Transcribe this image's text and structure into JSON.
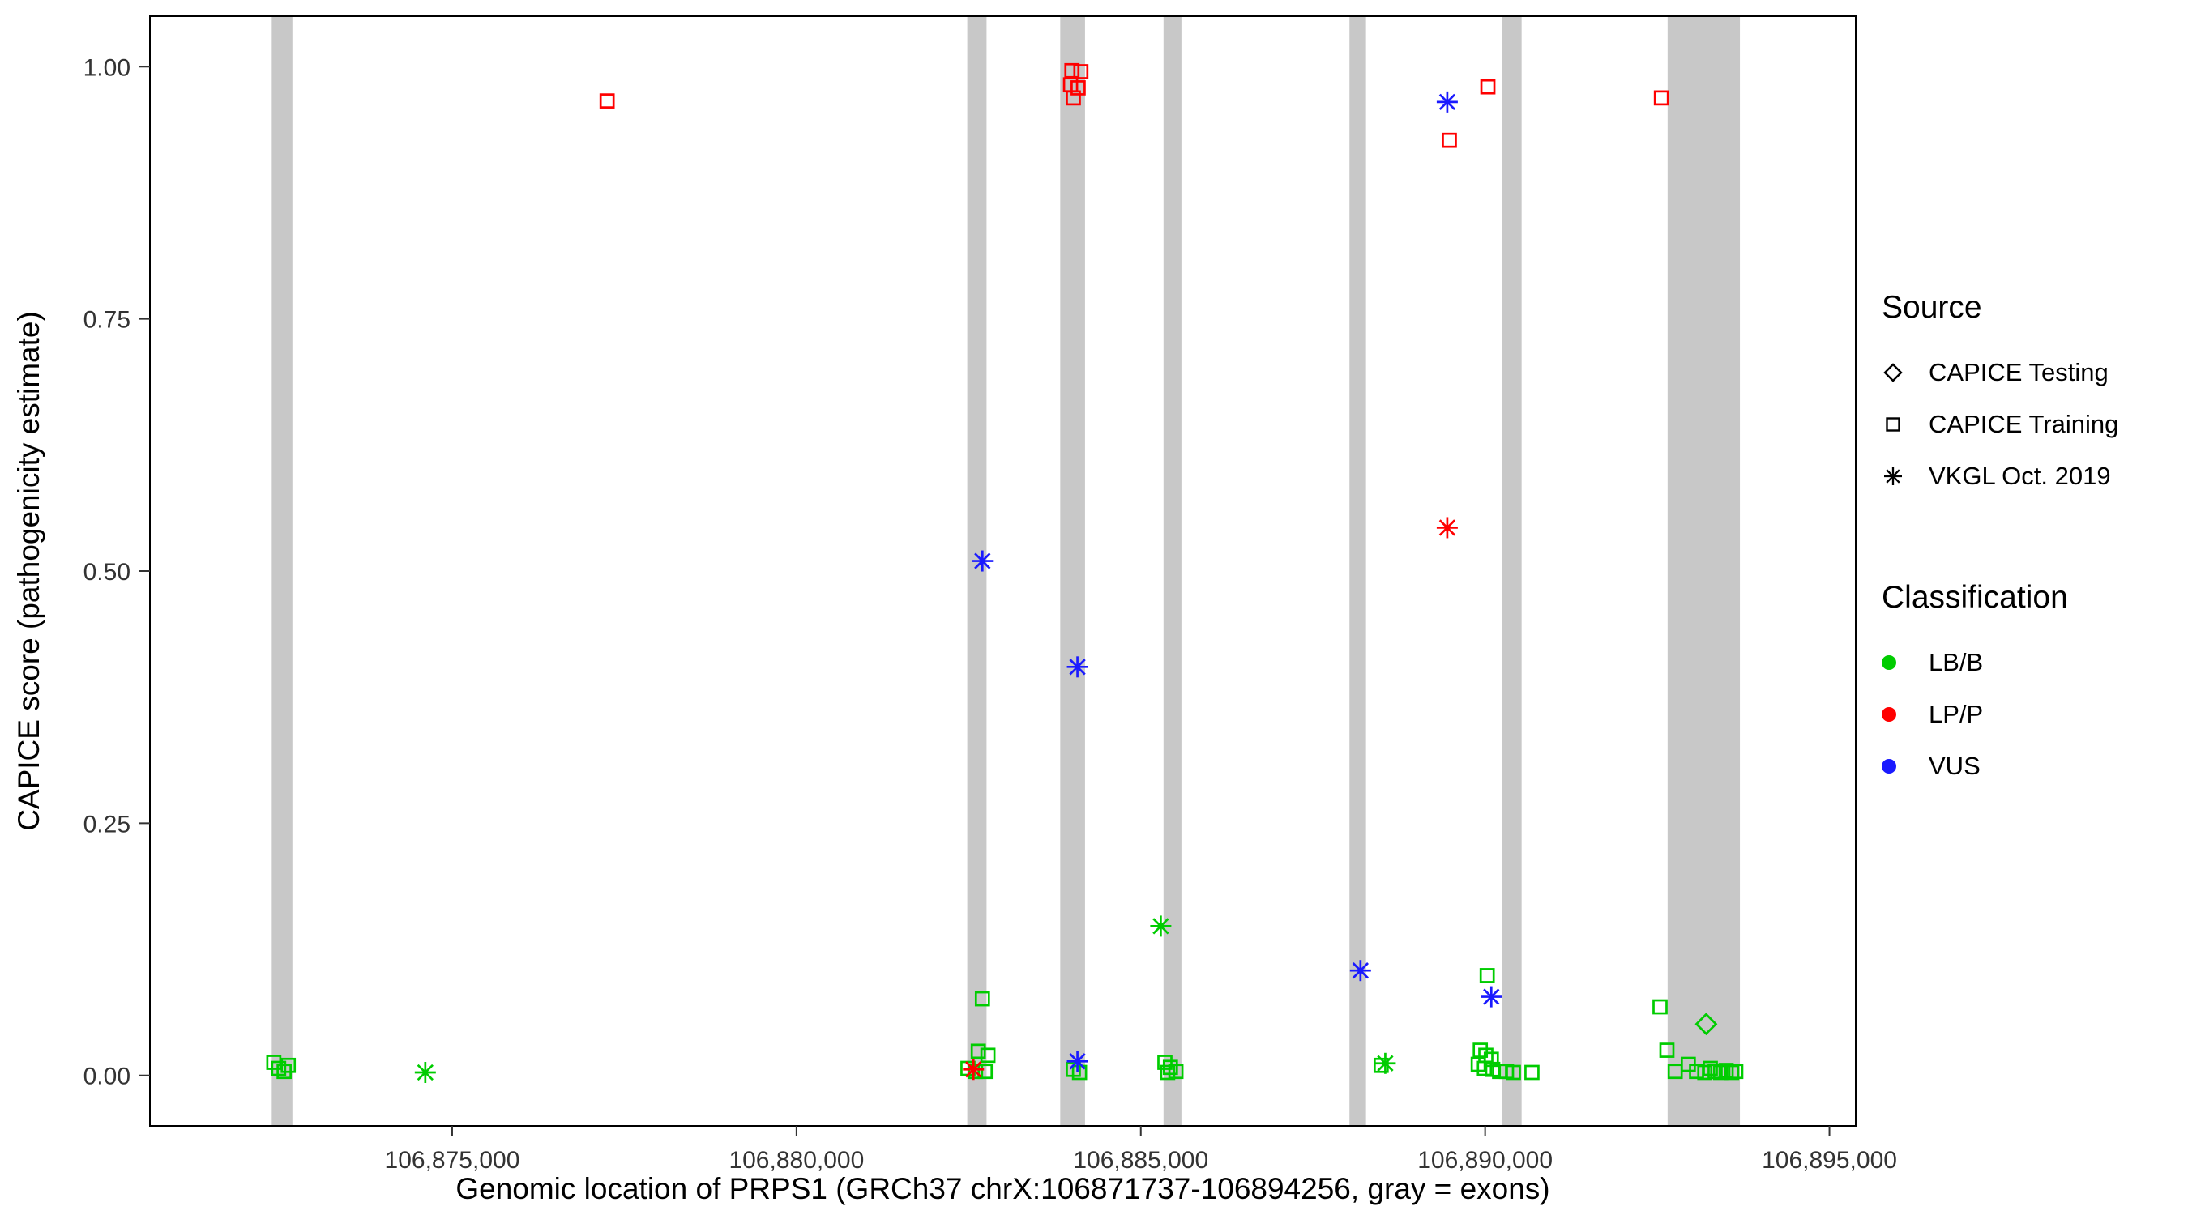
{
  "chart_data": {
    "type": "scatter",
    "title": "",
    "xlabel": "Genomic location of PRPS1 (GRCh37 chrX:106871737-106894256, gray = exons)",
    "ylabel": "CAPICE score (pathogenicity estimate)",
    "xlim": [
      106870611,
      106895382
    ],
    "ylim": [
      -0.05,
      1.05
    ],
    "x_ticks": [
      {
        "value": 106875000,
        "label": "106,875,000"
      },
      {
        "value": 106880000,
        "label": "106,880,000"
      },
      {
        "value": 106885000,
        "label": "106,885,000"
      },
      {
        "value": 106890000,
        "label": "106,890,000"
      },
      {
        "value": 106895000,
        "label": "106,895,000"
      }
    ],
    "y_ticks": [
      {
        "value": 0.0,
        "label": "0.00"
      },
      {
        "value": 0.25,
        "label": "0.25"
      },
      {
        "value": 0.5,
        "label": "0.50"
      },
      {
        "value": 0.75,
        "label": "0.75"
      },
      {
        "value": 1.0,
        "label": "1.00"
      }
    ],
    "grid": false,
    "legend_position": "right",
    "exon_color": "#c8c8c8",
    "panel_border_color": "#000000",
    "series_colors": {
      "LB/B": "#00cc00",
      "LP/P": "#ff0000",
      "VUS": "#1a1aff"
    },
    "shape_by_source": {
      "testing": "diamond",
      "training": "square",
      "vkgl": "asterisk"
    },
    "exons": [
      [
        106872380,
        106872680
      ],
      [
        106882480,
        106882760
      ],
      [
        106883830,
        106884190
      ],
      [
        106885330,
        106885590
      ],
      [
        106888030,
        106888270
      ],
      [
        106890250,
        106890530
      ],
      [
        106892650,
        106893700
      ]
    ],
    "points": [
      {
        "x": 106872410,
        "y": 0.013,
        "source": "training",
        "cls": "LB/B"
      },
      {
        "x": 106872480,
        "y": 0.007,
        "source": "training",
        "cls": "LB/B"
      },
      {
        "x": 106872560,
        "y": 0.004,
        "source": "training",
        "cls": "LB/B"
      },
      {
        "x": 106872620,
        "y": 0.01,
        "source": "training",
        "cls": "LB/B"
      },
      {
        "x": 106874610,
        "y": 0.003,
        "source": "vkgl",
        "cls": "LB/B"
      },
      {
        "x": 106877250,
        "y": 0.966,
        "source": "training",
        "cls": "LP/P"
      },
      {
        "x": 106882700,
        "y": 0.076,
        "source": "training",
        "cls": "LB/B"
      },
      {
        "x": 106882640,
        "y": 0.024,
        "source": "training",
        "cls": "LB/B"
      },
      {
        "x": 106882780,
        "y": 0.02,
        "source": "training",
        "cls": "LB/B"
      },
      {
        "x": 106882490,
        "y": 0.007,
        "source": "training",
        "cls": "LB/B"
      },
      {
        "x": 106882600,
        "y": 0.004,
        "source": "training",
        "cls": "LB/B"
      },
      {
        "x": 106882740,
        "y": 0.004,
        "source": "training",
        "cls": "LB/B"
      },
      {
        "x": 106882570,
        "y": 0.006,
        "source": "vkgl",
        "cls": "LP/P"
      },
      {
        "x": 106882700,
        "y": 0.51,
        "source": "vkgl",
        "cls": "VUS"
      },
      {
        "x": 106884000,
        "y": 0.996,
        "source": "training",
        "cls": "LP/P"
      },
      {
        "x": 106884130,
        "y": 0.995,
        "source": "training",
        "cls": "LP/P"
      },
      {
        "x": 106883980,
        "y": 0.982,
        "source": "training",
        "cls": "LP/P"
      },
      {
        "x": 106884090,
        "y": 0.979,
        "source": "training",
        "cls": "LP/P"
      },
      {
        "x": 106884020,
        "y": 0.969,
        "source": "training",
        "cls": "LP/P"
      },
      {
        "x": 106884080,
        "y": 0.405,
        "source": "vkgl",
        "cls": "VUS"
      },
      {
        "x": 106884020,
        "y": 0.006,
        "source": "training",
        "cls": "LB/B"
      },
      {
        "x": 106884110,
        "y": 0.003,
        "source": "training",
        "cls": "LB/B"
      },
      {
        "x": 106884080,
        "y": 0.014,
        "source": "vkgl",
        "cls": "VUS"
      },
      {
        "x": 106885290,
        "y": 0.148,
        "source": "vkgl",
        "cls": "LB/B"
      },
      {
        "x": 106885350,
        "y": 0.013,
        "source": "training",
        "cls": "LB/B"
      },
      {
        "x": 106885430,
        "y": 0.008,
        "source": "training",
        "cls": "LB/B"
      },
      {
        "x": 106885510,
        "y": 0.004,
        "source": "training",
        "cls": "LB/B"
      },
      {
        "x": 106885390,
        "y": 0.003,
        "source": "training",
        "cls": "LB/B"
      },
      {
        "x": 106888190,
        "y": 0.104,
        "source": "vkgl",
        "cls": "VUS"
      },
      {
        "x": 106888490,
        "y": 0.01,
        "source": "training",
        "cls": "LB/B"
      },
      {
        "x": 106888550,
        "y": 0.012,
        "source": "vkgl",
        "cls": "LB/B"
      },
      {
        "x": 106889450,
        "y": 0.965,
        "source": "vkgl",
        "cls": "VUS"
      },
      {
        "x": 106889480,
        "y": 0.927,
        "source": "training",
        "cls": "LP/P"
      },
      {
        "x": 106890040,
        "y": 0.98,
        "source": "training",
        "cls": "LP/P"
      },
      {
        "x": 106889450,
        "y": 0.543,
        "source": "vkgl",
        "cls": "LP/P"
      },
      {
        "x": 106890030,
        "y": 0.099,
        "source": "training",
        "cls": "LB/B"
      },
      {
        "x": 106890090,
        "y": 0.078,
        "source": "vkgl",
        "cls": "VUS"
      },
      {
        "x": 106889930,
        "y": 0.025,
        "source": "training",
        "cls": "LB/B"
      },
      {
        "x": 106890010,
        "y": 0.02,
        "source": "training",
        "cls": "LB/B"
      },
      {
        "x": 106890090,
        "y": 0.016,
        "source": "training",
        "cls": "LB/B"
      },
      {
        "x": 106889900,
        "y": 0.011,
        "source": "training",
        "cls": "LB/B"
      },
      {
        "x": 106889990,
        "y": 0.007,
        "source": "training",
        "cls": "LB/B"
      },
      {
        "x": 106890110,
        "y": 0.006,
        "source": "training",
        "cls": "LB/B"
      },
      {
        "x": 106890210,
        "y": 0.004,
        "source": "training",
        "cls": "LB/B"
      },
      {
        "x": 106890310,
        "y": 0.004,
        "source": "training",
        "cls": "LB/B"
      },
      {
        "x": 106890410,
        "y": 0.003,
        "source": "training",
        "cls": "LB/B"
      },
      {
        "x": 106890680,
        "y": 0.003,
        "source": "training",
        "cls": "LB/B"
      },
      {
        "x": 106892560,
        "y": 0.969,
        "source": "training",
        "cls": "LP/P"
      },
      {
        "x": 106892540,
        "y": 0.068,
        "source": "training",
        "cls": "LB/B"
      },
      {
        "x": 106892640,
        "y": 0.025,
        "source": "training",
        "cls": "LB/B"
      },
      {
        "x": 106892760,
        "y": 0.004,
        "source": "training",
        "cls": "LB/B"
      },
      {
        "x": 106892950,
        "y": 0.011,
        "source": "training",
        "cls": "LB/B"
      },
      {
        "x": 106893070,
        "y": 0.004,
        "source": "training",
        "cls": "LB/B"
      },
      {
        "x": 106893190,
        "y": 0.003,
        "source": "training",
        "cls": "LB/B"
      },
      {
        "x": 106893210,
        "y": 0.051,
        "source": "testing",
        "cls": "LB/B"
      },
      {
        "x": 106893270,
        "y": 0.007,
        "source": "training",
        "cls": "LB/B"
      },
      {
        "x": 106893340,
        "y": 0.004,
        "source": "training",
        "cls": "LB/B"
      },
      {
        "x": 106893420,
        "y": 0.003,
        "source": "training",
        "cls": "LB/B"
      },
      {
        "x": 106893500,
        "y": 0.005,
        "source": "training",
        "cls": "LB/B"
      },
      {
        "x": 106893580,
        "y": 0.003,
        "source": "training",
        "cls": "LB/B"
      },
      {
        "x": 106893640,
        "y": 0.004,
        "source": "training",
        "cls": "LB/B"
      }
    ]
  },
  "legend": {
    "source": {
      "title": "Source",
      "items": [
        {
          "label": "CAPICE Testing",
          "shape": "diamond"
        },
        {
          "label": "CAPICE Training",
          "shape": "square"
        },
        {
          "label": "VKGL Oct. 2019",
          "shape": "asterisk"
        }
      ]
    },
    "classification": {
      "title": "Classification",
      "items": [
        {
          "label": "LB/B",
          "color": "#00cc00"
        },
        {
          "label": "LP/P",
          "color": "#ff0000"
        },
        {
          "label": "VUS",
          "color": "#1a1aff"
        }
      ]
    }
  }
}
